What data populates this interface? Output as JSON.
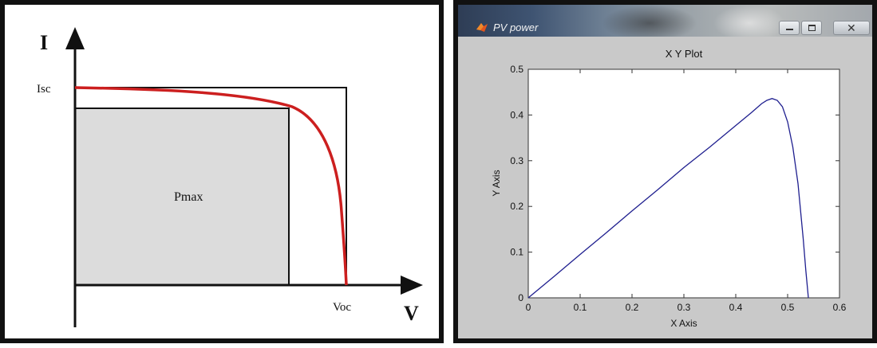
{
  "iv_diagram": {
    "y_axis_symbol": "I",
    "x_axis_symbol": "V",
    "isc_label": "Isc",
    "voc_label": "Voc",
    "pmax_label": "Pmax",
    "colors": {
      "curve": "#cc1f1f",
      "fill": "#dcdcdc",
      "axes": "#111111"
    }
  },
  "window": {
    "title": "PV power"
  },
  "chart_data": {
    "type": "line",
    "title": "X Y Plot",
    "xlabel": "X Axis",
    "ylabel": "Y Axis",
    "xlim": [
      0,
      0.6
    ],
    "ylim": [
      0,
      0.5
    ],
    "xticks": [
      "0",
      "0.1",
      "0.2",
      "0.3",
      "0.4",
      "0.5",
      "0.6"
    ],
    "yticks": [
      "0",
      "0.1",
      "0.2",
      "0.3",
      "0.4",
      "0.5"
    ],
    "grid": false,
    "series": [
      {
        "color": "#1f1f8f",
        "x": [
          0,
          0.05,
          0.1,
          0.15,
          0.2,
          0.25,
          0.3,
          0.35,
          0.4,
          0.43,
          0.45,
          0.46,
          0.47,
          0.48,
          0.49,
          0.5,
          0.51,
          0.52,
          0.53,
          0.535,
          0.54
        ],
        "y": [
          0,
          0.047,
          0.095,
          0.142,
          0.19,
          0.237,
          0.285,
          0.33,
          0.377,
          0.405,
          0.425,
          0.432,
          0.436,
          0.432,
          0.418,
          0.385,
          0.33,
          0.25,
          0.13,
          0.06,
          0
        ]
      }
    ]
  }
}
